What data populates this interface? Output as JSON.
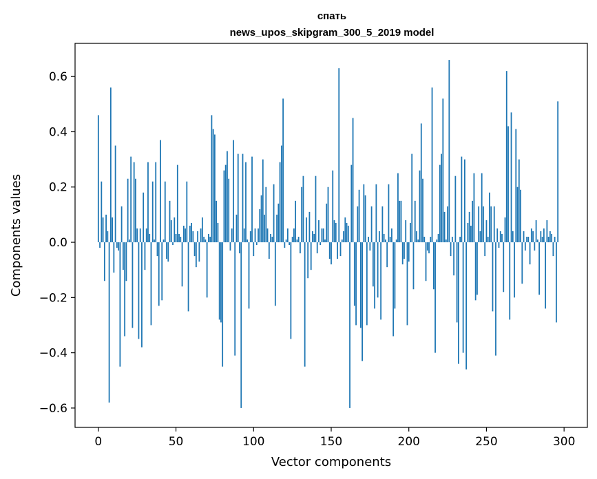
{
  "chart_data": {
    "type": "bar",
    "title": "спать",
    "subtitle": "news_upos_skipgram_300_5_2019 model",
    "xlabel": "Vector components",
    "ylabel": "Components values",
    "xlim": [
      -15,
      315
    ],
    "ylim": [
      -0.67,
      0.72
    ],
    "xticks": [
      0,
      50,
      100,
      150,
      200,
      250,
      300
    ],
    "yticks": [
      -0.6,
      -0.4,
      -0.2,
      0.0,
      0.2,
      0.4,
      0.6
    ],
    "xtick_labels": [
      "0",
      "50",
      "100",
      "150",
      "200",
      "250",
      "300"
    ],
    "ytick_labels": [
      "−0.6",
      "−0.4",
      "−0.2",
      "0.0",
      "0.2",
      "0.4",
      "0.6"
    ],
    "grid": false,
    "bar_color": "#1f77b4",
    "series": [
      {
        "values": [
          0.46,
          -0.02,
          0.22,
          0.09,
          -0.14,
          0.1,
          0.04,
          -0.58,
          0.56,
          0.09,
          -0.11,
          0.35,
          -0.02,
          -0.03,
          -0.45,
          0.13,
          -0.1,
          -0.34,
          -0.14,
          0.23,
          0.01,
          0.31,
          -0.31,
          0.29,
          0.23,
          0.05,
          -0.35,
          0.05,
          -0.38,
          0.18,
          -0.1,
          0.05,
          0.29,
          0.03,
          -0.3,
          0.22,
          0.01,
          0.29,
          -0.05,
          -0.23,
          0.37,
          -0.21,
          0.01,
          0.22,
          -0.06,
          -0.07,
          0.15,
          0.08,
          -0.01,
          0.09,
          0.03,
          0.28,
          0.03,
          0.02,
          -0.16,
          0.06,
          0.05,
          0.22,
          -0.25,
          0.06,
          0.07,
          0.04,
          -0.05,
          -0.09,
          0.04,
          -0.07,
          0.05,
          0.09,
          0.02,
          0.01,
          -0.2,
          0.03,
          0.02,
          0.46,
          0.41,
          0.39,
          0.15,
          0.07,
          -0.28,
          -0.29,
          -0.45,
          0.26,
          0.28,
          0.33,
          0.23,
          -0.03,
          0.05,
          0.37,
          -0.41,
          0.1,
          0.32,
          -0.04,
          -0.6,
          0.32,
          0.05,
          0.29,
          0.01,
          -0.24,
          0.04,
          0.31,
          -0.05,
          0.05,
          -0.01,
          0.05,
          0.12,
          0.17,
          0.3,
          0.1,
          0.2,
          0.05,
          -0.06,
          0.03,
          0.02,
          0.21,
          -0.23,
          0.1,
          0.14,
          0.29,
          0.35,
          0.52,
          -0.02,
          0.01,
          0.05,
          -0.01,
          -0.35,
          0.02,
          0.05,
          0.15,
          0.01,
          0.02,
          -0.04,
          0.2,
          0.24,
          -0.45,
          0.09,
          -0.13,
          0.11,
          -0.1,
          0.04,
          0.03,
          0.24,
          -0.04,
          0.08,
          -0.01,
          0.05,
          0.05,
          0.01,
          0.14,
          0.2,
          -0.06,
          -0.08,
          0.26,
          0.08,
          0.07,
          -0.06,
          0.63,
          -0.05,
          0.01,
          0.04,
          0.09,
          0.07,
          0.06,
          -0.6,
          0.28,
          0.45,
          -0.23,
          -0.3,
          0.13,
          0.19,
          -0.31,
          -0.43,
          0.21,
          0.17,
          -0.3,
          0.02,
          -0.03,
          0.13,
          -0.16,
          -0.24,
          0.21,
          -0.2,
          0.04,
          -0.28,
          0.13,
          0.03,
          0.01,
          -0.09,
          0.21,
          0.02,
          0.05,
          -0.34,
          -0.24,
          0.01,
          0.25,
          0.15,
          0.15,
          -0.08,
          -0.06,
          0.08,
          -0.3,
          -0.07,
          0.07,
          0.32,
          -0.17,
          0.15,
          0.04,
          0.01,
          0.26,
          0.43,
          0.23,
          0.02,
          -0.14,
          -0.03,
          -0.04,
          0.02,
          0.56,
          -0.17,
          -0.4,
          0.01,
          0.03,
          0.28,
          0.32,
          0.52,
          0.11,
          0.01,
          0.13,
          0.66,
          -0.05,
          0.02,
          -0.12,
          0.24,
          -0.29,
          -0.44,
          0.02,
          0.31,
          -0.4,
          0.3,
          -0.46,
          0.07,
          0.11,
          0.06,
          0.15,
          0.25,
          -0.21,
          -0.19,
          0.13,
          0.04,
          0.25,
          0.13,
          -0.05,
          0.08,
          0.02,
          0.18,
          0.13,
          -0.25,
          0.13,
          -0.41,
          0.05,
          -0.02,
          0.04,
          0.03,
          -0.18,
          0.09,
          0.62,
          0.42,
          -0.28,
          0.47,
          0.04,
          -0.2,
          0.41,
          0.2,
          0.3,
          0.19,
          -0.15,
          0.04,
          -0.03,
          0.02,
          0.02,
          -0.08,
          0.05,
          0.04,
          -0.03,
          0.08,
          0.01,
          -0.19,
          0.04,
          0.02,
          0.05,
          -0.24,
          0.08,
          0.02,
          0.04,
          0.03,
          -0.05,
          0.02,
          -0.29,
          0.51
        ]
      }
    ]
  }
}
